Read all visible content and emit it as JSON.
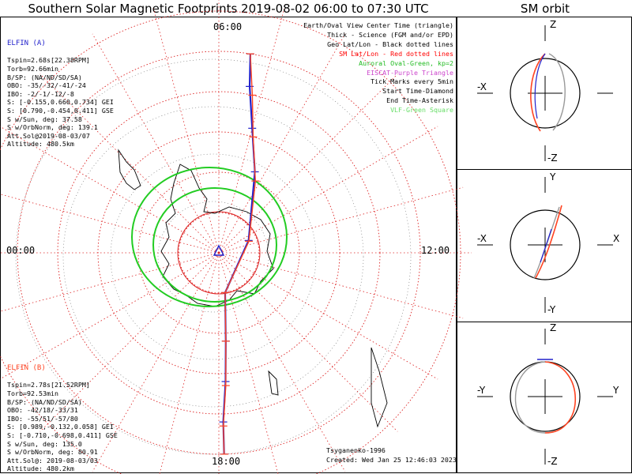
{
  "header": {
    "title": "Southern Solar Magnetic Footprints 2019-08-02 06:00 to 07:30 UTC",
    "sm_title": "SM orbit"
  },
  "legend": [
    {
      "text": "Earth/Oval View Center Time (triangle)",
      "color": "#000000"
    },
    {
      "text": "Thick - Science (FGM and/or EPD)",
      "color": "#000000"
    },
    {
      "text": "Geo Lat/Lon - Black dotted lines",
      "color": "#000000"
    },
    {
      "text": "SM Lat/Lon - Red dotted lines",
      "color": "#ff0000"
    },
    {
      "text": "Auroral Oval-Green, kp=2",
      "color": "#22bb22"
    },
    {
      "text": "EISCAT-Purple Triangle",
      "color": "#cc44cc"
    },
    {
      "text": "Tick Marks every 5min",
      "color": "#000000"
    },
    {
      "text": "Start Time-Diamond",
      "color": "#000000"
    },
    {
      "text": "End Time-Asterisk",
      "color": "#000000"
    },
    {
      "text": "VLF-Green Square",
      "color": "#66dd66"
    }
  ],
  "probe_a": {
    "name": "ELFIN (A)",
    "color": "#2222cc",
    "lines": [
      "Tspin=2.68s[22.38RPM]",
      "Torb=92.66min",
      "B/SP: (NA/ND/SD/SA)",
      "OBO: -35/-32/-41/-24",
      "IBO: -2/-1/-12/-8",
      "S: [-0.155,0.660,0.734] GEI",
      "S: [0.790,-0.454,0.411] GSE",
      "S w/Sun, deg: 37.58",
      "S w/OrbNorm, deg: 139.1",
      "Att.Sol@2019-08-03/07",
      "Altitude: 480.5km"
    ]
  },
  "probe_b": {
    "name": "ELFIN (B)",
    "color": "#ff4422",
    "lines": [
      "Tspin=2.78s[21.52RPM]",
      "Torb=92.53min",
      "B/SP: (NA/ND/SD/SA)",
      "OBO: -42/18/-33/31",
      "IBO: -55/51/-57/80",
      "S: [0.989,-0.132,0.058] GEI",
      "S: [-0.710,-0.698,0.411] GSE",
      "S w/Sun, deg: 135.0",
      "S w/OrbNorm, deg: 80.91",
      "Att.Sol@: 2019-08-03/03",
      "Altitude: 480.2km"
    ]
  },
  "clock_labels": {
    "top": "06:00",
    "left": "00:00",
    "right": "12:00",
    "bottom": "18:00"
  },
  "credits": [
    "Tsyganenko-1996",
    "Created: Wed Jan 25 12:46:03 2023"
  ],
  "sm_panels": [
    {
      "up": "Z",
      "down": "-Z",
      "left": "-X",
      "right": ""
    },
    {
      "up": "Y",
      "down": "-Y",
      "left": "-X",
      "right": "X"
    },
    {
      "up": "Z",
      "down": "-Z",
      "left": "-Y",
      "right": "Y"
    }
  ],
  "chart_data": {
    "type": "polar-map",
    "projection": "south-polar, SM coordinates",
    "view_center_time": "2019-08-02 06:00 to 07:30 UTC",
    "sm_latitude_circles_deg": [
      -90,
      -80,
      -70,
      -60,
      -50,
      -40,
      -30
    ],
    "sm_lon_spacing_deg": 15,
    "auroral_oval_kp": 2,
    "footprint_tracks": [
      {
        "name": "ELFIN (A)",
        "color": "#2222cc",
        "points_mlt_lat": [
          [
            6.6,
            -40
          ],
          [
            6.7,
            -48
          ],
          [
            7.0,
            -58
          ],
          [
            7.6,
            -68
          ],
          [
            10.5,
            -82
          ],
          [
            17.4,
            -80
          ],
          [
            17.7,
            -68
          ],
          [
            17.8,
            -58
          ],
          [
            17.9,
            -48
          ],
          [
            17.9,
            -40
          ]
        ]
      },
      {
        "name": "ELFIN (B)",
        "color": "#ff4422",
        "points_mlt_lat": [
          [
            6.6,
            -40
          ],
          [
            6.8,
            -50
          ],
          [
            7.1,
            -60
          ],
          [
            7.8,
            -70
          ],
          [
            10.6,
            -82
          ],
          [
            17.4,
            -80
          ],
          [
            17.7,
            -68
          ],
          [
            17.8,
            -57
          ],
          [
            17.9,
            -47
          ],
          [
            17.9,
            -40
          ]
        ]
      }
    ]
  }
}
